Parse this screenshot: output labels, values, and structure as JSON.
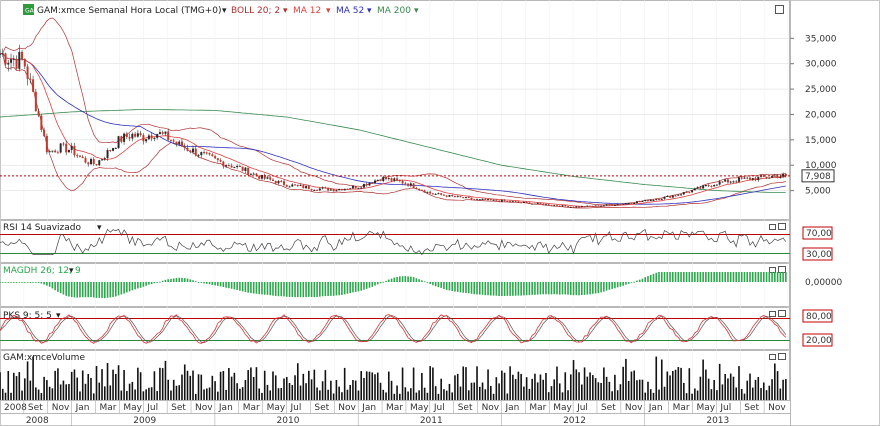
{
  "header": {
    "logo": "GAM",
    "title": "GAM:xmce Semanal Hora Local (TMG+0)",
    "boll": "BOLL 20; 2",
    "ma12": "MA 12",
    "ma52": "MA 52",
    "ma200": "MA 200"
  },
  "colors": {
    "price": "#1a1a1a",
    "up": "#2a2a2a",
    "down": "#c0392b",
    "boll": "#b03030",
    "ma12": "#e04040",
    "ma52": "#3030c0",
    "ma200": "#3a8a50",
    "grid": "#d8d8d8",
    "ref": "#c00000",
    "macd": "#2aa84a",
    "rsi": "#444444",
    "pks_k": "#e03030",
    "pks_d": "#555555",
    "volume": "#111111"
  },
  "panes": {
    "rsi_title": "RSI 14 Suavizado",
    "macd_title": "MAGDH 26; 12; 9",
    "pks_title": "PKS 9; 5; 5",
    "volume_title": "GAM:xmceVolume"
  },
  "chart_data": {
    "type": "line",
    "title": "GAM:xmce Semanal Hora Local (TMG+0)",
    "x_start": "2008-07",
    "x_end": "2013-12",
    "y_ticks": [
      "35,000",
      "30,000",
      "25,000",
      "20,000",
      "15,000",
      "10,000",
      "5,000"
    ],
    "ylim": [
      0,
      39000
    ],
    "last_price_label": "7,908",
    "last_price": 7908,
    "rsi_levels": [
      "70,00",
      "30,00"
    ],
    "macd_zero_label": "0,00000",
    "pks_levels": [
      "80,00",
      "20,00"
    ],
    "x_month_labels": [
      "2008",
      "Set",
      "Nov",
      "Jan",
      "Mar",
      "May",
      "Jul",
      "Set",
      "Nov",
      "Jan",
      "Mar",
      "May",
      "Jul",
      "Set",
      "Nov",
      "Jan",
      "Mar",
      "May",
      "Jul",
      "Set",
      "Nov",
      "Jan",
      "Mar",
      "May",
      "Jul",
      "Set",
      "Nov",
      "Jan",
      "Mar",
      "May",
      "Jul",
      "Set",
      "Nov"
    ],
    "x_year_labels": [
      "2008",
      "2009",
      "2010",
      "2011",
      "2012",
      "2013"
    ],
    "price_anchors": {
      "x": [
        "2008-07",
        "2008-08",
        "2008-09",
        "2008-10",
        "2008-11",
        "2008-12",
        "2009-01",
        "2009-02",
        "2009-03",
        "2009-04",
        "2009-05",
        "2009-06",
        "2009-07",
        "2009-08",
        "2009-09",
        "2009-10",
        "2009-11",
        "2009-12",
        "2010-01",
        "2010-03",
        "2010-05",
        "2010-07",
        "2010-09",
        "2010-11",
        "2011-01",
        "2011-03",
        "2011-05",
        "2011-07",
        "2011-09",
        "2011-11",
        "2012-01",
        "2012-03",
        "2012-05",
        "2012-07",
        "2012-09",
        "2012-11",
        "2013-01",
        "2013-03",
        "2013-05",
        "2013-07",
        "2013-09",
        "2013-11",
        "2013-12"
      ],
      "y": [
        32000,
        31000,
        30500,
        22000,
        12500,
        13500,
        13000,
        11000,
        10200,
        12500,
        15000,
        16000,
        15500,
        16500,
        15500,
        14000,
        13000,
        12000,
        11000,
        9500,
        7500,
        6200,
        5500,
        5200,
        5800,
        7500,
        6500,
        4500,
        3800,
        3200,
        3000,
        2600,
        2200,
        1800,
        2000,
        2400,
        3000,
        3800,
        5000,
        6500,
        7200,
        7600,
        7908
      ]
    },
    "ma200_anchors": {
      "x": [
        "2008-07",
        "2009-01",
        "2009-07",
        "2010-01",
        "2010-07",
        "2011-01",
        "2011-07",
        "2012-01",
        "2012-07",
        "2013-01",
        "2013-07",
        "2013-12"
      ],
      "y": [
        19500,
        20500,
        21000,
        20800,
        19500,
        17000,
        13500,
        10000,
        7800,
        6200,
        5000,
        4600
      ]
    },
    "volume_scale_note": ""
  }
}
